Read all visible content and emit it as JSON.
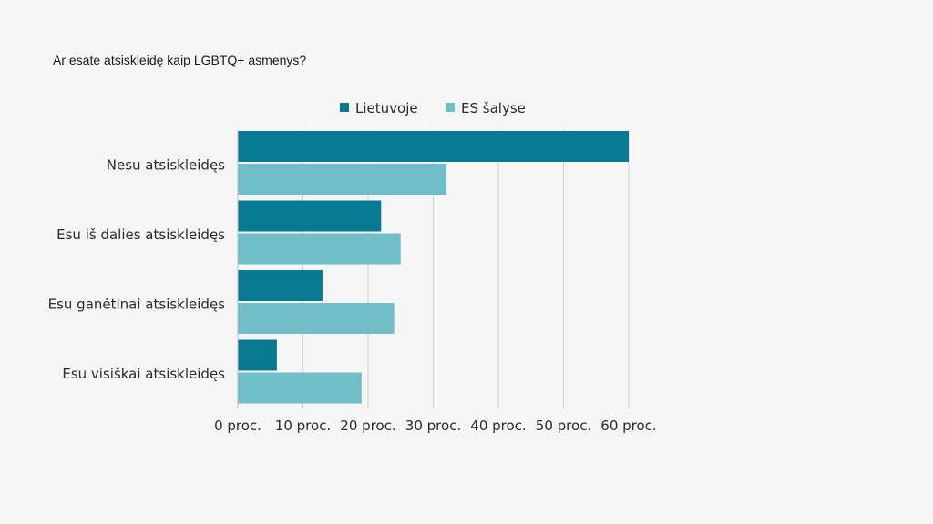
{
  "chart_data": {
    "type": "bar",
    "orientation": "horizontal",
    "title": "Ar esate atsiskleidę kaip LGBTQ+ asmenys?",
    "categories": [
      "Nesu atsiskleidęs",
      "Esu iš dalies atsiskleidęs",
      "Esu ganėtinai atsiskleidęs",
      "Esu visiškai atsiskleidęs"
    ],
    "series": [
      {
        "name": "Lietuvoje",
        "color": "#077a91",
        "values": [
          60,
          22,
          13,
          6
        ]
      },
      {
        "name": "ES šalyse",
        "color": "#70bfc8",
        "values": [
          32,
          25,
          24,
          19
        ]
      }
    ],
    "xlim": [
      0,
      60
    ],
    "xticks": [
      0,
      10,
      20,
      30,
      40,
      50,
      60
    ],
    "xtick_labels": [
      "0 proc.",
      "10 proc.",
      "20 proc.",
      "30 proc.",
      "40 proc.",
      "50 proc.",
      "60 proc."
    ],
    "xlabel": "",
    "ylabel": "",
    "grid": "vertical",
    "legend_position": "top"
  }
}
